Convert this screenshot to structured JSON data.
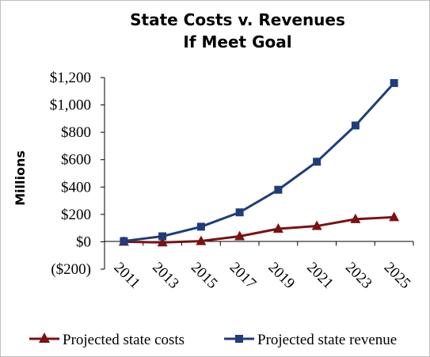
{
  "chart_data": {
    "type": "line",
    "title_line1": "State Costs v. Revenues",
    "title_line2": "If Meet Goal",
    "xlabel": "",
    "ylabel": "Millions",
    "categories": [
      "2011",
      "2013",
      "2015",
      "2017",
      "2019",
      "2021",
      "2023",
      "2025"
    ],
    "yticks": [
      "($200)",
      "$0",
      "$200",
      "$400",
      "$600",
      "$800",
      "$1,000",
      "$1,200"
    ],
    "ylim": [
      -200,
      1200
    ],
    "grid": false,
    "legend_position": "bottom",
    "series": [
      {
        "name": "Projected state costs",
        "color": "#7b1111",
        "marker": "triangle",
        "values": [
          0,
          -5,
          5,
          40,
          95,
          115,
          165,
          180
        ]
      },
      {
        "name": "Projected state revenue",
        "color": "#1f3d7a",
        "marker": "square",
        "values": [
          5,
          40,
          110,
          215,
          380,
          585,
          850,
          1160
        ]
      }
    ]
  }
}
